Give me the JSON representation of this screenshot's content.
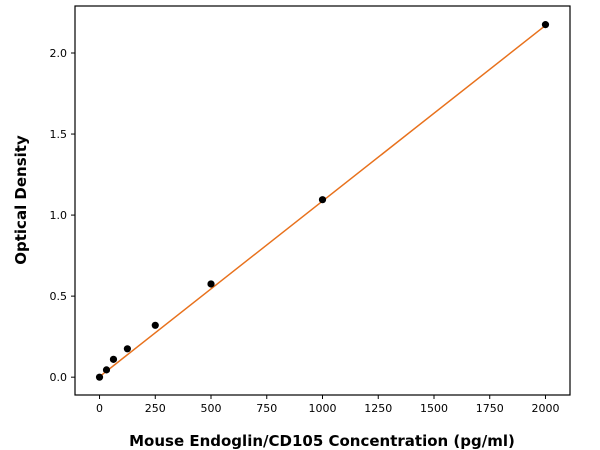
{
  "chart_data": {
    "type": "scatter",
    "title": "",
    "xlabel": "Mouse Endoglin/CD105 Concentration (pg/ml)",
    "ylabel": "Optical Density",
    "xlim": [
      -110,
      2110
    ],
    "ylim": [
      -0.11,
      2.29
    ],
    "xticks": [
      0,
      250,
      500,
      750,
      1000,
      1250,
      1500,
      1750,
      2000
    ],
    "xtick_labels": [
      "0",
      "250",
      "500",
      "750",
      "1000",
      "1250",
      "1500",
      "1750",
      "2000"
    ],
    "yticks": [
      0.0,
      0.5,
      1.0,
      1.5,
      2.0
    ],
    "ytick_labels": [
      "0.0",
      "0.5",
      "1.0",
      "1.5",
      "2.0"
    ],
    "grid": false,
    "legend": "none",
    "series": [
      {
        "type": "scatter",
        "x": [
          0,
          31.25,
          62.5,
          125,
          250,
          500,
          1000,
          2000
        ],
        "y": [
          0.0,
          0.045,
          0.11,
          0.175,
          0.32,
          0.575,
          1.095,
          2.175
        ]
      },
      {
        "type": "line",
        "x": [
          0,
          2000
        ],
        "y": [
          0.003,
          2.17
        ]
      }
    ],
    "colors": {
      "points": "#000000",
      "fit_line": "#e8711c",
      "axes": "#000000"
    }
  }
}
